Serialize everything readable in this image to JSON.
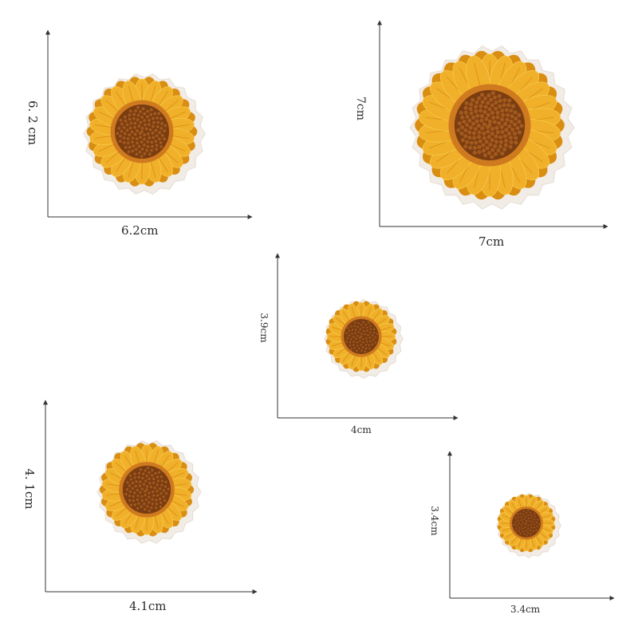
{
  "sizes": [
    {
      "id": "a",
      "width_label": "6.2cm",
      "height_label": "6. 2 cm"
    },
    {
      "id": "b",
      "width_label": "7cm",
      "height_label": "7cm"
    },
    {
      "id": "c",
      "width_label": "4cm",
      "height_label": "3.9cm"
    },
    {
      "id": "d",
      "width_label": "4.1cm",
      "height_label": "4. 1cm"
    },
    {
      "id": "e",
      "width_label": "3.4cm",
      "height_label": "3.4cm"
    }
  ],
  "colors": {
    "petal": "#f0b02a",
    "petal_dark": "#d98e12",
    "petal_light": "#f7c84a",
    "ring": "#cf7a1e",
    "center": "#7a3d12",
    "center_dot": "#a35a1e",
    "backing": "#f2ece6",
    "axis": "#333333"
  }
}
